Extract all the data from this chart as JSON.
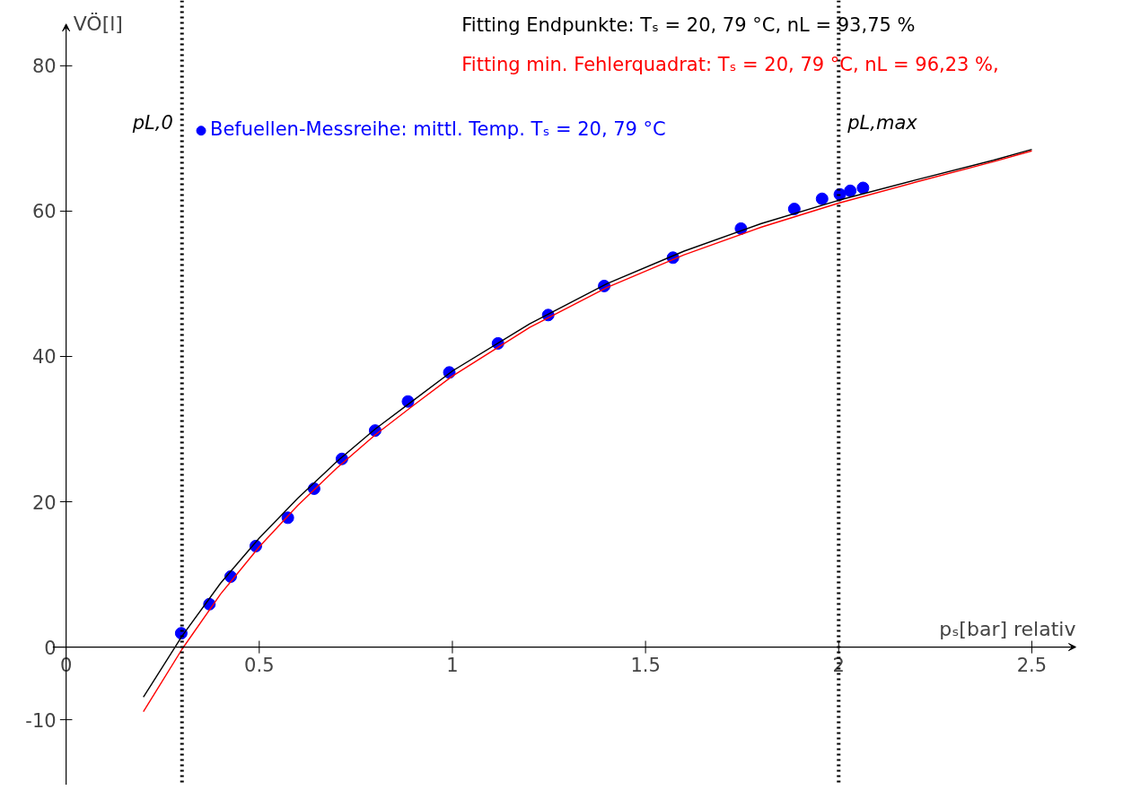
{
  "chart_data": {
    "type": "scatter",
    "xlabel": "pₛ[bar] relativ",
    "ylabel": "VÖ[l]",
    "xlim": [
      -0.17,
      2.7
    ],
    "ylim": [
      -19,
      89
    ],
    "xticks": [
      0,
      0.5,
      1,
      1.5,
      2,
      2.5
    ],
    "yticks": [
      -10,
      0,
      20,
      40,
      60,
      80
    ],
    "grid": false,
    "legend": "top",
    "series": [
      {
        "name": "Befuellen-Messreihe: mittl. Temp. Tₛ = 20, 79 °C",
        "color": "#0000ff",
        "marker": "circle",
        "x": [
          0.298,
          0.371,
          0.426,
          0.491,
          0.574,
          0.642,
          0.714,
          0.8,
          0.885,
          0.992,
          1.118,
          1.248,
          1.393,
          1.571,
          1.747,
          1.885,
          1.957,
          2.003,
          2.03,
          2.063
        ],
        "values": [
          1.9,
          5.9,
          9.7,
          13.9,
          17.8,
          21.8,
          25.9,
          29.8,
          33.8,
          37.8,
          41.8,
          45.7,
          49.7,
          53.6,
          57.6,
          60.3,
          61.7,
          62.3,
          62.8,
          63.2
        ]
      },
      {
        "name": "Fitting Endpunkte: Tₛ = 20, 79 °C, nL = 93,75 %",
        "color": "#000000",
        "type": "line",
        "x": [
          0.2,
          0.3,
          0.4,
          0.5,
          0.6,
          0.7,
          0.8,
          0.9,
          1.0,
          1.2,
          1.4,
          1.6,
          1.8,
          2.0,
          2.2,
          2.4,
          2.5
        ],
        "values": [
          -6.9,
          1.5,
          8.8,
          15,
          20.5,
          25.5,
          30,
          34,
          38,
          44.5,
          50,
          54.5,
          58.3,
          61.5,
          64.3,
          67,
          68.5
        ]
      },
      {
        "name": "Fitting min. Fehlerquadrat: Tₛ = 20, 79 °C, nL = 96,23 %,",
        "color": "#ff0000",
        "type": "line",
        "x": [
          0.2,
          0.3,
          0.4,
          0.5,
          0.6,
          0.7,
          0.8,
          0.9,
          1.0,
          1.2,
          1.4,
          1.6,
          1.8,
          2.0,
          2.2,
          2.4,
          2.5
        ],
        "values": [
          -8.9,
          -0.3,
          7.3,
          13.8,
          19.5,
          24.6,
          29.2,
          33.3,
          37.3,
          44,
          49.5,
          54,
          57.8,
          61.1,
          64,
          66.8,
          68.3
        ]
      }
    ],
    "ref_lines": [
      {
        "axis": "x",
        "value": 0.3,
        "label": "pL,0",
        "line_style": "dotted",
        "color": "#000000"
      },
      {
        "axis": "x",
        "value": 2.0,
        "label": "pL,max",
        "line_style": "dotted",
        "color": "#000000"
      }
    ]
  }
}
